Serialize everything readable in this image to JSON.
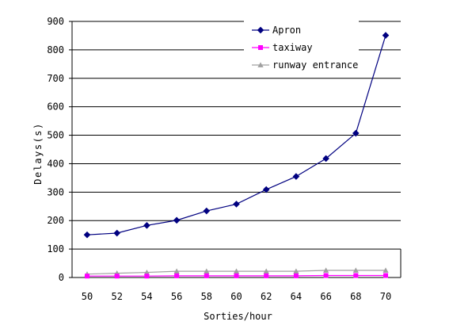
{
  "chart_data": {
    "type": "line",
    "title": "",
    "xlabel": "Sorties/hour",
    "ylabel": "Delays(s)",
    "x": [
      50,
      52,
      54,
      56,
      58,
      60,
      62,
      64,
      66,
      68,
      70
    ],
    "ylim": [
      0,
      900
    ],
    "yticks": [
      0,
      100,
      200,
      300,
      400,
      500,
      600,
      700,
      800,
      900
    ],
    "grid": "horizontal",
    "legend_position": "top-right",
    "series": [
      {
        "name": "Apron",
        "color": "#000080",
        "marker": "diamond",
        "values": [
          150,
          156,
          183,
          201,
          234,
          258,
          309,
          355,
          418,
          507,
          851
        ]
      },
      {
        "name": "taxiway",
        "color": "#FF00FF",
        "marker": "square",
        "values": [
          5,
          5,
          5,
          6,
          6,
          6,
          6,
          6,
          7,
          7,
          7
        ]
      },
      {
        "name": "runway entrance",
        "color": "#A0A0A0",
        "marker": "triangle",
        "values": [
          12,
          15,
          18,
          22,
          22,
          22,
          22,
          22,
          25,
          25,
          25
        ]
      }
    ]
  }
}
